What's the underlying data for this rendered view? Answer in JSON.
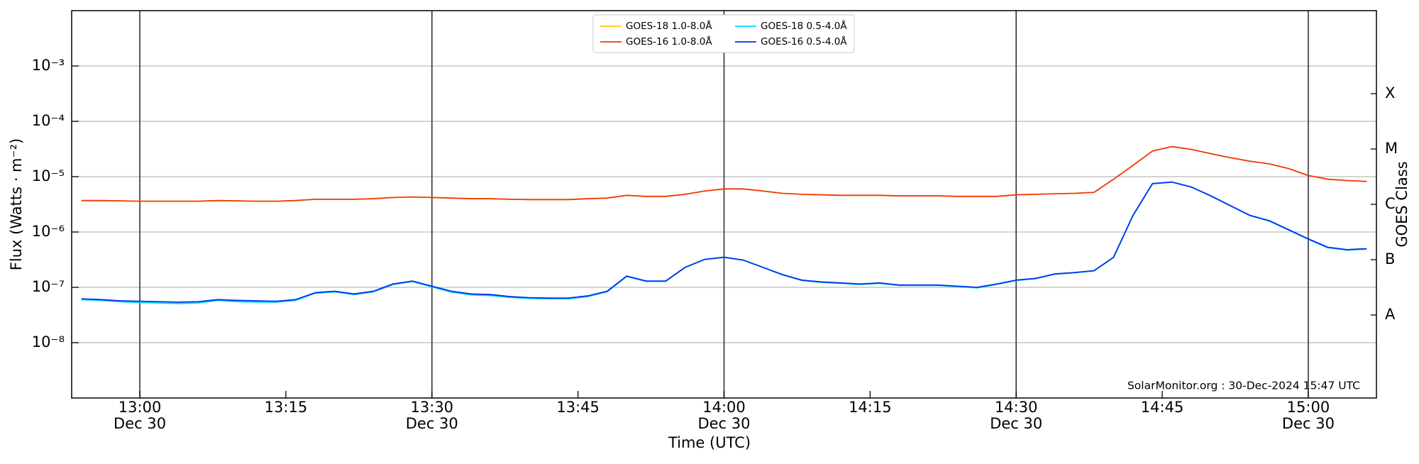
{
  "chart_data": {
    "type": "line",
    "log_y": true,
    "xlabel": "Time (UTC)",
    "ylabel": "Flux (Watts · m⁻²)",
    "y2label": "GOES Class",
    "annotation": "SolarMonitor.org : 30-Dec-2024 15:47 UTC",
    "legend_loc": "upper center",
    "legend_ncol": 2,
    "grid": true,
    "xlim": [
      "12:53",
      "15:07"
    ],
    "ylim": [
      1e-09,
      0.01
    ],
    "xticks": [
      {
        "value": "13:00",
        "label": "13:00",
        "date": "Dec 30"
      },
      {
        "value": "13:15",
        "label": "13:15"
      },
      {
        "value": "13:30",
        "label": "13:30",
        "date": "Dec 30"
      },
      {
        "value": "13:45",
        "label": "13:45"
      },
      {
        "value": "14:00",
        "label": "14:00",
        "date": "Dec 30"
      },
      {
        "value": "14:15",
        "label": "14:15"
      },
      {
        "value": "14:30",
        "label": "14:30",
        "date": "Dec 30"
      },
      {
        "value": "14:45",
        "label": "14:45"
      },
      {
        "value": "15:00",
        "label": "15:00",
        "date": "Dec 30"
      }
    ],
    "yticks": [
      {
        "value": 1e-08,
        "label": "10⁻⁸"
      },
      {
        "value": 1e-07,
        "label": "10⁻⁷"
      },
      {
        "value": 1e-06,
        "label": "10⁻⁶"
      },
      {
        "value": 1e-05,
        "label": "10⁻⁵"
      },
      {
        "value": 0.0001,
        "label": "10⁻⁴"
      },
      {
        "value": 0.001,
        "label": "10⁻³"
      }
    ],
    "y2ticks": [
      {
        "value": 3.16e-08,
        "label": "A"
      },
      {
        "value": 3.16e-07,
        "label": "B"
      },
      {
        "value": 3.16e-06,
        "label": "C"
      },
      {
        "value": 3.16e-05,
        "label": "M"
      },
      {
        "value": 0.000316,
        "label": "X"
      }
    ],
    "x": [
      "12:54",
      "12:56",
      "12:58",
      "13:00",
      "13:02",
      "13:04",
      "13:06",
      "13:08",
      "13:10",
      "13:12",
      "13:14",
      "13:16",
      "13:18",
      "13:20",
      "13:22",
      "13:24",
      "13:26",
      "13:28",
      "13:30",
      "13:32",
      "13:34",
      "13:36",
      "13:38",
      "13:40",
      "13:42",
      "13:44",
      "13:46",
      "13:48",
      "13:50",
      "13:52",
      "13:54",
      "13:56",
      "13:58",
      "14:00",
      "14:02",
      "14:04",
      "14:06",
      "14:08",
      "14:10",
      "14:12",
      "14:14",
      "14:16",
      "14:18",
      "14:20",
      "14:22",
      "14:24",
      "14:26",
      "14:28",
      "14:30",
      "14:32",
      "14:34",
      "14:36",
      "14:38",
      "14:40",
      "14:42",
      "14:44",
      "14:46",
      "14:48",
      "14:50",
      "14:52",
      "14:54",
      "14:56",
      "14:58",
      "15:00",
      "15:02",
      "15:04",
      "15:06"
    ],
    "series": [
      {
        "name": "GOES-18 1.0-8.0Å",
        "color": "#ffcc00",
        "values": [
          3.7e-06,
          3.7e-06,
          3.65e-06,
          3.6e-06,
          3.6e-06,
          3.6e-06,
          3.6e-06,
          3.7e-06,
          3.65e-06,
          3.6e-06,
          3.6e-06,
          3.7e-06,
          3.9e-06,
          3.9e-06,
          3.9e-06,
          4e-06,
          4.2e-06,
          4.3e-06,
          4.2e-06,
          4.1e-06,
          4e-06,
          4e-06,
          3.9e-06,
          3.85e-06,
          3.85e-06,
          3.85e-06,
          4e-06,
          4.1e-06,
          4.6e-06,
          4.4e-06,
          4.4e-06,
          4.8e-06,
          5.5e-06,
          6e-06,
          6e-06,
          5.5e-06,
          5e-06,
          4.8e-06,
          4.7e-06,
          4.6e-06,
          4.6e-06,
          4.6e-06,
          4.5e-06,
          4.5e-06,
          4.5e-06,
          4.4e-06,
          4.4e-06,
          4.4e-06,
          4.7e-06,
          4.8e-06,
          4.9e-06,
          5e-06,
          5.2e-06,
          9e-06,
          1.6e-05,
          2.9e-05,
          3.5e-05,
          3.1e-05,
          2.6e-05,
          2.2e-05,
          1.9e-05,
          1.7e-05,
          1.4e-05,
          1.05e-05,
          9e-06,
          8.5e-06,
          8.2e-06
        ]
      },
      {
        "name": "GOES-16 1.0-8.0Å",
        "color": "#f03a10",
        "values": [
          3.7e-06,
          3.7e-06,
          3.65e-06,
          3.6e-06,
          3.6e-06,
          3.6e-06,
          3.6e-06,
          3.7e-06,
          3.65e-06,
          3.6e-06,
          3.6e-06,
          3.7e-06,
          3.9e-06,
          3.9e-06,
          3.9e-06,
          4e-06,
          4.2e-06,
          4.3e-06,
          4.2e-06,
          4.1e-06,
          4e-06,
          4e-06,
          3.9e-06,
          3.85e-06,
          3.85e-06,
          3.85e-06,
          4e-06,
          4.1e-06,
          4.6e-06,
          4.4e-06,
          4.4e-06,
          4.8e-06,
          5.5e-06,
          6e-06,
          6e-06,
          5.5e-06,
          5e-06,
          4.8e-06,
          4.7e-06,
          4.6e-06,
          4.6e-06,
          4.6e-06,
          4.5e-06,
          4.5e-06,
          4.5e-06,
          4.4e-06,
          4.4e-06,
          4.4e-06,
          4.7e-06,
          4.8e-06,
          4.9e-06,
          5e-06,
          5.2e-06,
          9e-06,
          1.6e-05,
          2.9e-05,
          3.5e-05,
          3.1e-05,
          2.6e-05,
          2.2e-05,
          1.9e-05,
          1.7e-05,
          1.4e-05,
          1.05e-05,
          9e-06,
          8.5e-06,
          8.2e-06
        ]
      },
      {
        "name": "GOES-18 0.5-4.0Å",
        "color": "#00d8ff",
        "values": [
          6e-08,
          5.8e-08,
          5.5e-08,
          5.3e-08,
          5.2e-08,
          5.1e-08,
          5.2e-08,
          5.8e-08,
          5.5e-08,
          5.4e-08,
          5.4e-08,
          5.8e-08,
          7.8e-08,
          8.3e-08,
          7.4e-08,
          8.3e-08,
          1.12e-07,
          1.27e-07,
          1.02e-07,
          8.2e-08,
          7.3e-08,
          7.1e-08,
          6.6e-08,
          6.3e-08,
          6.2e-08,
          6.2e-08,
          6.8e-08,
          8.3e-08,
          1.57e-07,
          1.28e-07,
          1.28e-07,
          2.28e-07,
          3.18e-07,
          3.48e-07,
          3.08e-07,
          2.28e-07,
          1.68e-07,
          1.33e-07,
          1.23e-07,
          1.18e-07,
          1.13e-07,
          1.18e-07,
          1.08e-07,
          1.08e-07,
          1.08e-07,
          1.03e-07,
          9.8e-08,
          1.13e-07,
          1.33e-07,
          1.43e-07,
          1.73e-07,
          1.83e-07,
          1.98e-07,
          3.45e-07,
          1.98e-06,
          7.45e-06,
          7.95e-06,
          6.45e-06,
          4.45e-06,
          2.98e-06,
          1.98e-06,
          1.58e-06,
          1.08e-06,
          7.4e-07,
          5.2e-07,
          4.7e-07,
          4.9e-07
        ]
      },
      {
        "name": "GOES-16 0.5-4.0Å",
        "color": "#0033ee",
        "values": [
          6.2e-08,
          6e-08,
          5.7e-08,
          5.6e-08,
          5.5e-08,
          5.4e-08,
          5.5e-08,
          6e-08,
          5.8e-08,
          5.7e-08,
          5.6e-08,
          6e-08,
          8e-08,
          8.5e-08,
          7.6e-08,
          8.5e-08,
          1.15e-07,
          1.3e-07,
          1.05e-07,
          8.5e-08,
          7.6e-08,
          7.4e-08,
          6.8e-08,
          6.5e-08,
          6.4e-08,
          6.4e-08,
          7e-08,
          8.5e-08,
          1.6e-07,
          1.3e-07,
          1.3e-07,
          2.3e-07,
          3.2e-07,
          3.5e-07,
          3.1e-07,
          2.3e-07,
          1.7e-07,
          1.35e-07,
          1.25e-07,
          1.2e-07,
          1.15e-07,
          1.2e-07,
          1.1e-07,
          1.1e-07,
          1.1e-07,
          1.05e-07,
          1e-07,
          1.15e-07,
          1.35e-07,
          1.45e-07,
          1.75e-07,
          1.85e-07,
          2e-07,
          3.5e-07,
          2e-06,
          7.5e-06,
          8e-06,
          6.5e-06,
          4.5e-06,
          3e-06,
          2e-06,
          1.6e-06,
          1.1e-06,
          7.5e-07,
          5.3e-07,
          4.8e-07,
          5e-07
        ]
      }
    ]
  }
}
